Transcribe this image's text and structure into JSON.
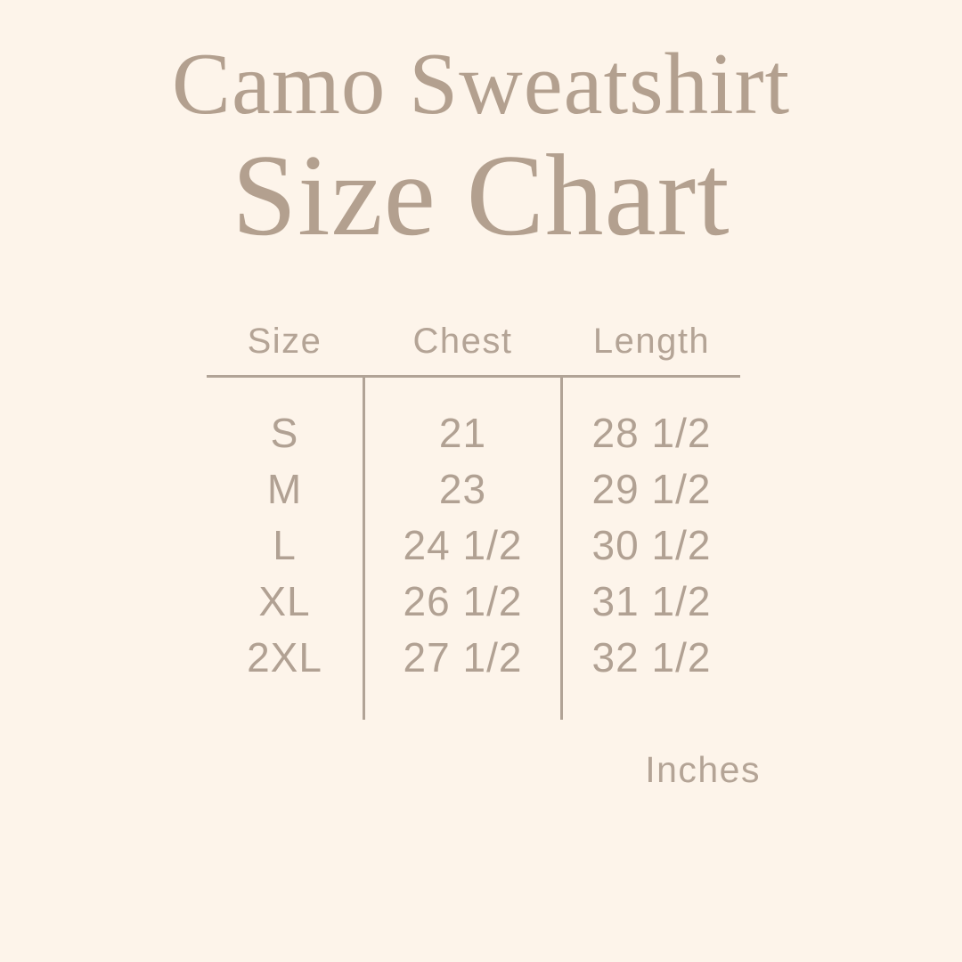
{
  "page": {
    "background_color": "#fdf4ea",
    "text_color": "#b1a193",
    "line_color": "#b1a396"
  },
  "title": {
    "line1": "Camo Sweatshirt",
    "line2": "Size Chart"
  },
  "table": {
    "columns": [
      "Size",
      "Chest",
      "Length"
    ],
    "rows": [
      {
        "size": "S",
        "chest": "21",
        "length": "28 1/2"
      },
      {
        "size": "M",
        "chest": "23",
        "length": "29 1/2"
      },
      {
        "size": "L",
        "chest": "24 1/2",
        "length": "30 1/2"
      },
      {
        "size": "XL",
        "chest": "26 1/2",
        "length": "31 1/2"
      },
      {
        "size": "2XL",
        "chest": "27 1/2",
        "length": "32 1/2"
      }
    ]
  },
  "footnote": {
    "unit_label": "Inches"
  },
  "chart_data": {
    "type": "table",
    "title": "Camo Sweatshirt Size Chart",
    "columns": [
      "Size",
      "Chest",
      "Length"
    ],
    "rows": [
      [
        "S",
        "21",
        "28 1/2"
      ],
      [
        "M",
        "23",
        "29 1/2"
      ],
      [
        "L",
        "24 1/2",
        "30 1/2"
      ],
      [
        "XL",
        "26 1/2",
        "31 1/2"
      ],
      [
        "2XL",
        "27 1/2",
        "32 1/2"
      ]
    ],
    "units": "Inches",
    "layout": {
      "header_rule": true,
      "column_separators": true,
      "outer_border": false
    }
  }
}
